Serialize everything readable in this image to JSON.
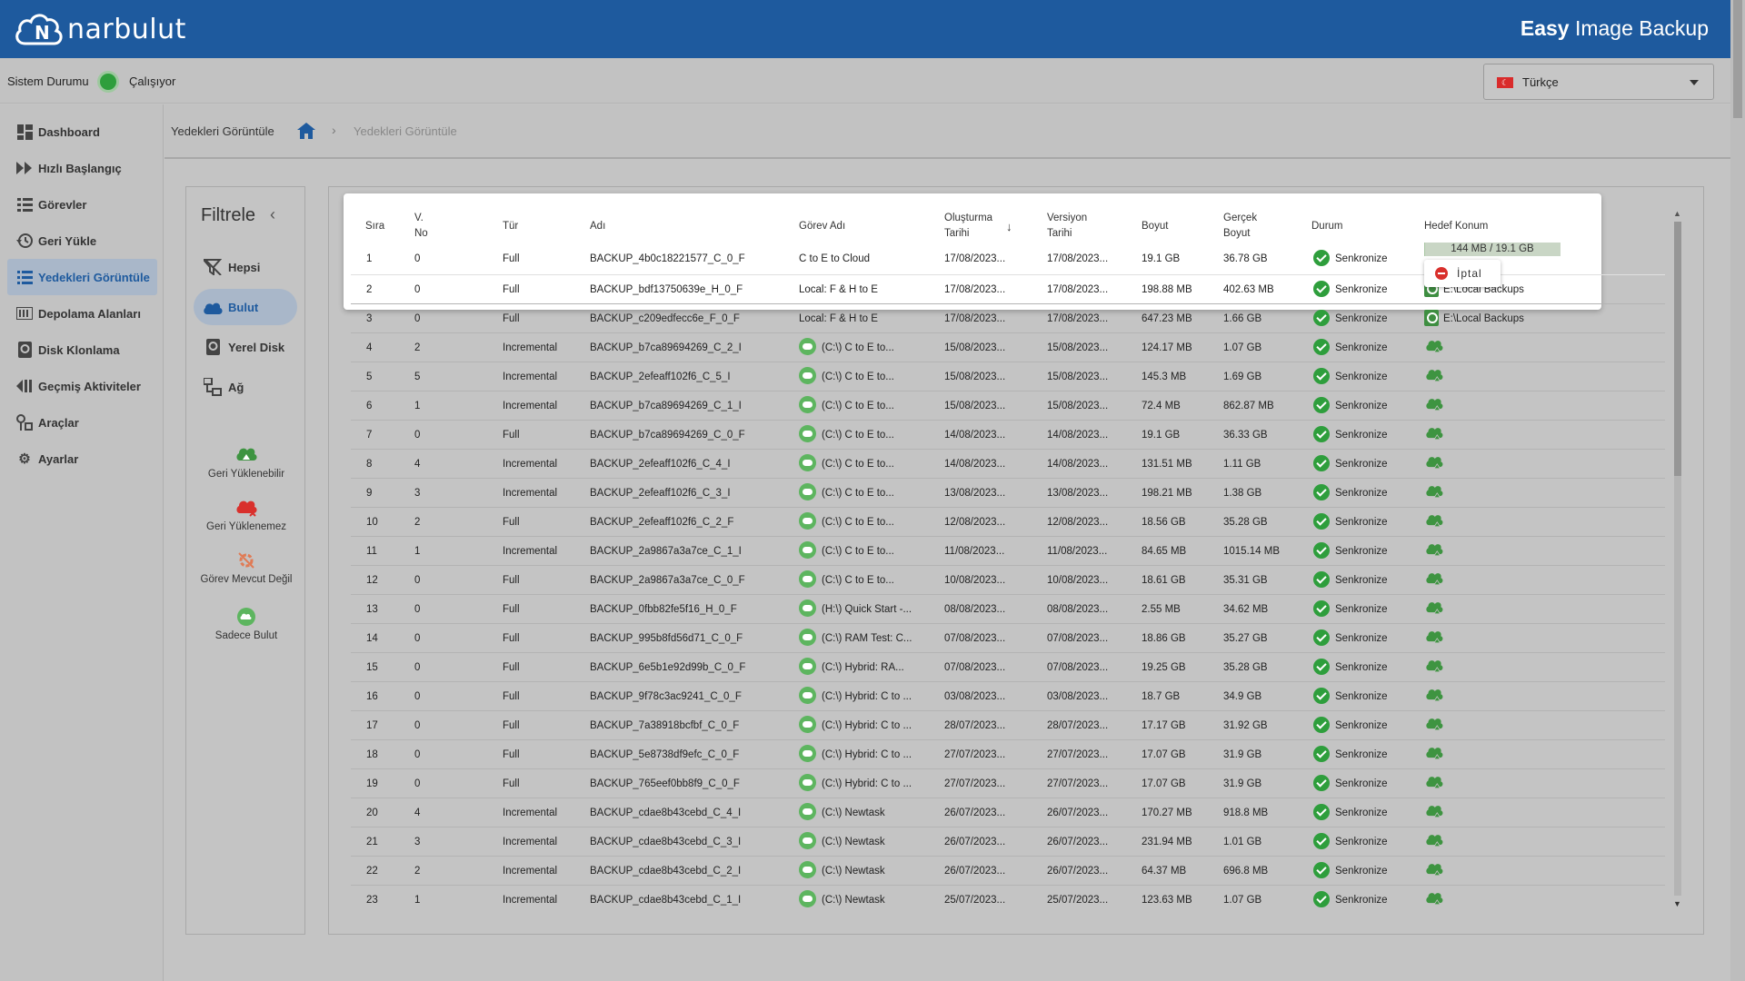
{
  "header": {
    "logo_text": "narbulut",
    "app_title_bold": "Easy",
    "app_title_rest": " Image Backup",
    "brand_color": "#1e5a9e"
  },
  "status": {
    "label": "Sistem Durumu",
    "value": "Çalışıyor",
    "language": "Türkçe"
  },
  "sidebar": {
    "items": [
      {
        "label": "Dashboard",
        "icon": "dashboard-icon"
      },
      {
        "label": "Hızlı Başlangıç",
        "icon": "fast-forward-icon"
      },
      {
        "label": "Görevler",
        "icon": "list-icon"
      },
      {
        "label": "Geri Yükle",
        "icon": "restore-icon"
      },
      {
        "label": "Yedekleri Görüntüle",
        "icon": "view-list-icon",
        "active": true
      },
      {
        "label": "Depolama Alanları",
        "icon": "storage-icon"
      },
      {
        "label": "Disk Klonlama",
        "icon": "disk-icon"
      },
      {
        "label": "Geçmiş Aktiviteler",
        "icon": "history-icon"
      },
      {
        "label": "Araçlar",
        "icon": "tools-icon"
      },
      {
        "label": "Ayarlar",
        "icon": "gear-icon"
      }
    ]
  },
  "breadcrumb": {
    "title": "Yedekleri Görüntüle",
    "separator": "›",
    "current": "Yedekleri Görüntüle"
  },
  "filter": {
    "title": "Filtrele",
    "collapse": "‹",
    "items": [
      {
        "label": "Hepsi",
        "icon": "filter-off-icon"
      },
      {
        "label": "Bulut",
        "icon": "cloud-icon",
        "active": true
      },
      {
        "label": "Yerel Disk",
        "icon": "local-disk-icon"
      },
      {
        "label": "Ağ",
        "icon": "network-icon"
      }
    ],
    "legend": [
      {
        "label": "Geri Yüklenebilir",
        "icon": "cloud-restorable-icon"
      },
      {
        "label": "Geri Yüklenemez",
        "icon": "cloud-not-restorable-icon"
      },
      {
        "label": "Görev Mevcut Değil",
        "icon": "task-missing-icon"
      },
      {
        "label": "Sadece Bulut",
        "icon": "cloud-only-icon"
      }
    ]
  },
  "table": {
    "columns": {
      "sira": "Sıra",
      "vno_1": "V.",
      "vno_2": "No",
      "tur": "Tür",
      "adi": "Adı",
      "gorev": "Görev Adı",
      "olus_1": "Oluşturma",
      "olus_2": "Tarihi",
      "vers_1": "Versiyon",
      "vers_2": "Tarihi",
      "boyut": "Boyut",
      "gercek_1": "Gerçek",
      "gercek_2": "Boyut",
      "durum": "Durum",
      "hedef": "Hedef Konum"
    },
    "progress": {
      "text": "144 MB / 19.1 GB",
      "fraction": 0.0075
    },
    "cancel_label": "İptal",
    "rows": [
      {
        "sira": "1",
        "vno": "0",
        "tur": "Full",
        "adi": "BACKUP_4b0c18221577_C_0_F",
        "gorev": "C to E to Cloud",
        "gorev_cloud": false,
        "olus": "17/08/2023...",
        "vers": "17/08/2023...",
        "boyut": "19.1 GB",
        "gercek": "36.78 GB",
        "durum": "Senkronize",
        "hedef": "",
        "hedef_type": "progress"
      },
      {
        "sira": "2",
        "vno": "0",
        "tur": "Full",
        "adi": "BACKUP_bdf13750639e_H_0_F",
        "gorev": "Local: F & H to E",
        "gorev_cloud": false,
        "olus": "17/08/2023...",
        "vers": "17/08/2023...",
        "boyut": "198.88 MB",
        "gercek": "402.63 MB",
        "durum": "Senkronize",
        "hedef": "E:\\Local Backups",
        "hedef_type": "disk"
      },
      {
        "sira": "3",
        "vno": "0",
        "tur": "Full",
        "adi": "BACKUP_c209edfecc6e_F_0_F",
        "gorev": "Local: F & H to E",
        "gorev_cloud": false,
        "olus": "17/08/2023...",
        "vers": "17/08/2023...",
        "boyut": "647.23 MB",
        "gercek": "1.66 GB",
        "durum": "Senkronize",
        "hedef": "E:\\Local Backups",
        "hedef_type": "disk"
      },
      {
        "sira": "4",
        "vno": "2",
        "tur": "Incremental",
        "adi": "BACKUP_b7ca89694269_C_2_I",
        "gorev": "(C:\\) C to E to...",
        "gorev_cloud": true,
        "olus": "15/08/2023...",
        "vers": "15/08/2023...",
        "boyut": "124.17 MB",
        "gercek": "1.07 GB",
        "durum": "Senkronize",
        "hedef": "",
        "hedef_type": "cloud"
      },
      {
        "sira": "5",
        "vno": "5",
        "tur": "Incremental",
        "adi": "BACKUP_2efeaff102f6_C_5_I",
        "gorev": "(C:\\) C to E to...",
        "gorev_cloud": true,
        "olus": "15/08/2023...",
        "vers": "15/08/2023...",
        "boyut": "145.3 MB",
        "gercek": "1.69 GB",
        "durum": "Senkronize",
        "hedef": "",
        "hedef_type": "cloud"
      },
      {
        "sira": "6",
        "vno": "1",
        "tur": "Incremental",
        "adi": "BACKUP_b7ca89694269_C_1_I",
        "gorev": "(C:\\) C to E to...",
        "gorev_cloud": true,
        "olus": "15/08/2023...",
        "vers": "15/08/2023...",
        "boyut": "72.4 MB",
        "gercek": "862.87 MB",
        "durum": "Senkronize",
        "hedef": "",
        "hedef_type": "cloud"
      },
      {
        "sira": "7",
        "vno": "0",
        "tur": "Full",
        "adi": "BACKUP_b7ca89694269_C_0_F",
        "gorev": "(C:\\) C to E to...",
        "gorev_cloud": true,
        "olus": "14/08/2023...",
        "vers": "14/08/2023...",
        "boyut": "19.1 GB",
        "gercek": "36.33 GB",
        "durum": "Senkronize",
        "hedef": "",
        "hedef_type": "cloud"
      },
      {
        "sira": "8",
        "vno": "4",
        "tur": "Incremental",
        "adi": "BACKUP_2efeaff102f6_C_4_I",
        "gorev": "(C:\\) C to E to...",
        "gorev_cloud": true,
        "olus": "14/08/2023...",
        "vers": "14/08/2023...",
        "boyut": "131.51 MB",
        "gercek": "1.11 GB",
        "durum": "Senkronize",
        "hedef": "",
        "hedef_type": "cloud"
      },
      {
        "sira": "9",
        "vno": "3",
        "tur": "Incremental",
        "adi": "BACKUP_2efeaff102f6_C_3_I",
        "gorev": "(C:\\) C to E to...",
        "gorev_cloud": true,
        "olus": "13/08/2023...",
        "vers": "13/08/2023...",
        "boyut": "198.21 MB",
        "gercek": "1.38 GB",
        "durum": "Senkronize",
        "hedef": "",
        "hedef_type": "cloud"
      },
      {
        "sira": "10",
        "vno": "2",
        "tur": "Full",
        "adi": "BACKUP_2efeaff102f6_C_2_F",
        "gorev": "(C:\\) C to E to...",
        "gorev_cloud": true,
        "olus": "12/08/2023...",
        "vers": "12/08/2023...",
        "boyut": "18.56 GB",
        "gercek": "35.28 GB",
        "durum": "Senkronize",
        "hedef": "",
        "hedef_type": "cloud"
      },
      {
        "sira": "11",
        "vno": "1",
        "tur": "Incremental",
        "adi": "BACKUP_2a9867a3a7ce_C_1_I",
        "gorev": "(C:\\) C to E to...",
        "gorev_cloud": true,
        "olus": "11/08/2023...",
        "vers": "11/08/2023...",
        "boyut": "84.65 MB",
        "gercek": "1015.14 MB",
        "durum": "Senkronize",
        "hedef": "",
        "hedef_type": "cloud"
      },
      {
        "sira": "12",
        "vno": "0",
        "tur": "Full",
        "adi": "BACKUP_2a9867a3a7ce_C_0_F",
        "gorev": "(C:\\) C to E to...",
        "gorev_cloud": true,
        "olus": "10/08/2023...",
        "vers": "10/08/2023...",
        "boyut": "18.61 GB",
        "gercek": "35.31 GB",
        "durum": "Senkronize",
        "hedef": "",
        "hedef_type": "cloud"
      },
      {
        "sira": "13",
        "vno": "0",
        "tur": "Full",
        "adi": "BACKUP_0fbb82fe5f16_H_0_F",
        "gorev": "(H:\\) Quick Start -...",
        "gorev_cloud": true,
        "olus": "08/08/2023...",
        "vers": "08/08/2023...",
        "boyut": "2.55 MB",
        "gercek": "34.62 MB",
        "durum": "Senkronize",
        "hedef": "",
        "hedef_type": "cloud"
      },
      {
        "sira": "14",
        "vno": "0",
        "tur": "Full",
        "adi": "BACKUP_995b8fd56d71_C_0_F",
        "gorev": "(C:\\) RAM Test: C...",
        "gorev_cloud": true,
        "olus": "07/08/2023...",
        "vers": "07/08/2023...",
        "boyut": "18.86 GB",
        "gercek": "35.27 GB",
        "durum": "Senkronize",
        "hedef": "",
        "hedef_type": "cloud"
      },
      {
        "sira": "15",
        "vno": "0",
        "tur": "Full",
        "adi": "BACKUP_6e5b1e92d99b_C_0_F",
        "gorev": "(C:\\) Hybrid: RA...",
        "gorev_cloud": true,
        "olus": "07/08/2023...",
        "vers": "07/08/2023...",
        "boyut": "19.25 GB",
        "gercek": "35.28 GB",
        "durum": "Senkronize",
        "hedef": "",
        "hedef_type": "cloud"
      },
      {
        "sira": "16",
        "vno": "0",
        "tur": "Full",
        "adi": "BACKUP_9f78c3ac9241_C_0_F",
        "gorev": "(C:\\) Hybrid: C to ...",
        "gorev_cloud": true,
        "olus": "03/08/2023...",
        "vers": "03/08/2023...",
        "boyut": "18.7 GB",
        "gercek": "34.9 GB",
        "durum": "Senkronize",
        "hedef": "",
        "hedef_type": "cloud"
      },
      {
        "sira": "17",
        "vno": "0",
        "tur": "Full",
        "adi": "BACKUP_7a38918bcfbf_C_0_F",
        "gorev": "(C:\\) Hybrid: C to ...",
        "gorev_cloud": true,
        "olus": "28/07/2023...",
        "vers": "28/07/2023...",
        "boyut": "17.17 GB",
        "gercek": "31.92 GB",
        "durum": "Senkronize",
        "hedef": "",
        "hedef_type": "cloud"
      },
      {
        "sira": "18",
        "vno": "0",
        "tur": "Full",
        "adi": "BACKUP_5e8738df9efc_C_0_F",
        "gorev": "(C:\\) Hybrid: C to ...",
        "gorev_cloud": true,
        "olus": "27/07/2023...",
        "vers": "27/07/2023...",
        "boyut": "17.07 GB",
        "gercek": "31.9 GB",
        "durum": "Senkronize",
        "hedef": "",
        "hedef_type": "cloud"
      },
      {
        "sira": "19",
        "vno": "0",
        "tur": "Full",
        "adi": "BACKUP_765eef0bb8f9_C_0_F",
        "gorev": "(C:\\) Hybrid: C to ...",
        "gorev_cloud": true,
        "olus": "27/07/2023...",
        "vers": "27/07/2023...",
        "boyut": "17.07 GB",
        "gercek": "31.9 GB",
        "durum": "Senkronize",
        "hedef": "",
        "hedef_type": "cloud"
      },
      {
        "sira": "20",
        "vno": "4",
        "tur": "Incremental",
        "adi": "BACKUP_cdae8b43cebd_C_4_I",
        "gorev": "(C:\\) Newtask",
        "gorev_cloud": true,
        "olus": "26/07/2023...",
        "vers": "26/07/2023...",
        "boyut": "170.27 MB",
        "gercek": "918.8 MB",
        "durum": "Senkronize",
        "hedef": "",
        "hedef_type": "cloud"
      },
      {
        "sira": "21",
        "vno": "3",
        "tur": "Incremental",
        "adi": "BACKUP_cdae8b43cebd_C_3_I",
        "gorev": "(C:\\) Newtask",
        "gorev_cloud": true,
        "olus": "26/07/2023...",
        "vers": "26/07/2023...",
        "boyut": "231.94 MB",
        "gercek": "1.01 GB",
        "durum": "Senkronize",
        "hedef": "",
        "hedef_type": "cloud"
      },
      {
        "sira": "22",
        "vno": "2",
        "tur": "Incremental",
        "adi": "BACKUP_cdae8b43cebd_C_2_I",
        "gorev": "(C:\\) Newtask",
        "gorev_cloud": true,
        "olus": "26/07/2023...",
        "vers": "26/07/2023...",
        "boyut": "64.37 MB",
        "gercek": "696.8 MB",
        "durum": "Senkronize",
        "hedef": "",
        "hedef_type": "cloud"
      },
      {
        "sira": "23",
        "vno": "1",
        "tur": "Incremental",
        "adi": "BACKUP_cdae8b43cebd_C_1_I",
        "gorev": "(C:\\) Newtask",
        "gorev_cloud": true,
        "olus": "25/07/2023...",
        "vers": "25/07/2023...",
        "boyut": "123.63 MB",
        "gercek": "1.07 GB",
        "durum": "Senkronize",
        "hedef": "",
        "hedef_type": "cloud"
      }
    ]
  }
}
